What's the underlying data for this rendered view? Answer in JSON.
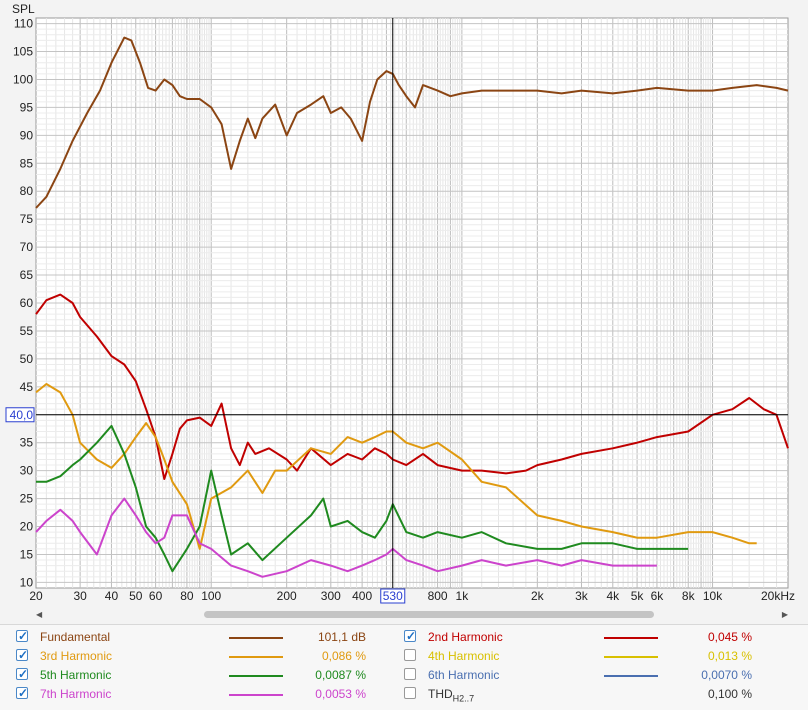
{
  "colors": {
    "fundamental": "#8b4513",
    "h2": "#c00000",
    "h3": "#e09a10",
    "h4": "#d8c000",
    "h5": "#1f8a1f",
    "h6": "#4a6fb0",
    "h7": "#cc44cc",
    "thd": "#333333"
  },
  "chart_data": {
    "type": "line",
    "xscale": "log",
    "ylabel": "SPL",
    "xlim": [
      20,
      20000
    ],
    "ylim": [
      9,
      111
    ],
    "xticks": [
      "20",
      "30",
      "40",
      "50",
      "60",
      "80",
      "100",
      "200",
      "300",
      "400",
      "530",
      "800",
      "1k",
      "2k",
      "3k",
      "4k",
      "5k",
      "6k",
      "8k",
      "10k",
      "20kHz"
    ],
    "xtick_values": [
      20,
      30,
      40,
      50,
      60,
      80,
      100,
      200,
      300,
      400,
      530,
      800,
      1000,
      2000,
      3000,
      4000,
      5000,
      6000,
      8000,
      10000,
      20000
    ],
    "yticks": [
      10,
      15,
      20,
      25,
      30,
      35,
      45,
      50,
      55,
      60,
      65,
      70,
      75,
      80,
      85,
      90,
      95,
      100,
      105,
      110
    ],
    "cursor": {
      "x": 530,
      "y": 40.0,
      "x_label": "530",
      "y_label": "40,0"
    },
    "grid": true,
    "series": [
      {
        "name": "Fundamental",
        "color_key": "fundamental",
        "points": [
          [
            20,
            77
          ],
          [
            22,
            79
          ],
          [
            25,
            84
          ],
          [
            28,
            89
          ],
          [
            32,
            94
          ],
          [
            36,
            98
          ],
          [
            40,
            103
          ],
          [
            45,
            107.5
          ],
          [
            48,
            107
          ],
          [
            52,
            103
          ],
          [
            56,
            98.5
          ],
          [
            60,
            98
          ],
          [
            65,
            100
          ],
          [
            70,
            99
          ],
          [
            75,
            97
          ],
          [
            80,
            96.5
          ],
          [
            90,
            96.5
          ],
          [
            100,
            95
          ],
          [
            110,
            92
          ],
          [
            120,
            84
          ],
          [
            130,
            89
          ],
          [
            140,
            93
          ],
          [
            150,
            89.5
          ],
          [
            160,
            93
          ],
          [
            180,
            95.5
          ],
          [
            200,
            90
          ],
          [
            220,
            94
          ],
          [
            250,
            95.5
          ],
          [
            280,
            97
          ],
          [
            300,
            94
          ],
          [
            330,
            95
          ],
          [
            360,
            93
          ],
          [
            400,
            89
          ],
          [
            430,
            96
          ],
          [
            460,
            100
          ],
          [
            500,
            101.5
          ],
          [
            530,
            101
          ],
          [
            560,
            99
          ],
          [
            600,
            97
          ],
          [
            650,
            95
          ],
          [
            700,
            99
          ],
          [
            800,
            98
          ],
          [
            900,
            97
          ],
          [
            1000,
            97.5
          ],
          [
            1200,
            98
          ],
          [
            1500,
            98
          ],
          [
            2000,
            98
          ],
          [
            2500,
            97.5
          ],
          [
            3000,
            98
          ],
          [
            4000,
            97.5
          ],
          [
            5000,
            98
          ],
          [
            6000,
            98.5
          ],
          [
            8000,
            98
          ],
          [
            10000,
            98
          ],
          [
            12000,
            98.5
          ],
          [
            15000,
            99
          ],
          [
            18000,
            98.5
          ],
          [
            20000,
            98
          ]
        ]
      },
      {
        "name": "2nd Harmonic",
        "color_key": "h2",
        "points": [
          [
            20,
            58
          ],
          [
            22,
            60.5
          ],
          [
            25,
            61.5
          ],
          [
            28,
            60
          ],
          [
            30,
            57.5
          ],
          [
            35,
            54
          ],
          [
            40,
            50.5
          ],
          [
            45,
            49
          ],
          [
            50,
            46
          ],
          [
            55,
            41
          ],
          [
            60,
            36
          ],
          [
            65,
            28.5
          ],
          [
            70,
            33
          ],
          [
            75,
            37.5
          ],
          [
            80,
            39
          ],
          [
            90,
            39.5
          ],
          [
            100,
            38
          ],
          [
            110,
            42
          ],
          [
            120,
            34
          ],
          [
            130,
            31
          ],
          [
            140,
            35
          ],
          [
            150,
            33
          ],
          [
            170,
            34
          ],
          [
            200,
            32
          ],
          [
            220,
            30
          ],
          [
            250,
            34
          ],
          [
            300,
            31
          ],
          [
            350,
            33
          ],
          [
            400,
            32
          ],
          [
            450,
            34
          ],
          [
            500,
            33
          ],
          [
            530,
            32
          ],
          [
            600,
            31
          ],
          [
            700,
            33
          ],
          [
            800,
            31
          ],
          [
            1000,
            30
          ],
          [
            1200,
            30
          ],
          [
            1500,
            29.5
          ],
          [
            1800,
            30
          ],
          [
            2000,
            31
          ],
          [
            2500,
            32
          ],
          [
            3000,
            33
          ],
          [
            4000,
            34
          ],
          [
            5000,
            35
          ],
          [
            6000,
            36
          ],
          [
            8000,
            37
          ],
          [
            10000,
            40
          ],
          [
            12000,
            41
          ],
          [
            14000,
            43
          ],
          [
            16000,
            41
          ],
          [
            18000,
            40
          ],
          [
            20000,
            34
          ]
        ]
      },
      {
        "name": "3rd Harmonic",
        "color_key": "h3",
        "points": [
          [
            20,
            44
          ],
          [
            22,
            45.5
          ],
          [
            25,
            44
          ],
          [
            28,
            40
          ],
          [
            30,
            35
          ],
          [
            35,
            32
          ],
          [
            40,
            30.5
          ],
          [
            45,
            33
          ],
          [
            50,
            36
          ],
          [
            55,
            38.5
          ],
          [
            60,
            36
          ],
          [
            65,
            32
          ],
          [
            70,
            28
          ],
          [
            80,
            24
          ],
          [
            90,
            16
          ],
          [
            100,
            25
          ],
          [
            120,
            27
          ],
          [
            140,
            30
          ],
          [
            160,
            26
          ],
          [
            180,
            30
          ],
          [
            200,
            30
          ],
          [
            250,
            34
          ],
          [
            300,
            33
          ],
          [
            350,
            36
          ],
          [
            400,
            35
          ],
          [
            450,
            36
          ],
          [
            500,
            37
          ],
          [
            530,
            37
          ],
          [
            600,
            35
          ],
          [
            700,
            34
          ],
          [
            800,
            35
          ],
          [
            1000,
            32
          ],
          [
            1200,
            28
          ],
          [
            1500,
            27
          ],
          [
            2000,
            22
          ],
          [
            2500,
            21
          ],
          [
            3000,
            20
          ],
          [
            4000,
            19
          ],
          [
            5000,
            18
          ],
          [
            6000,
            18
          ],
          [
            8000,
            19
          ],
          [
            10000,
            19
          ],
          [
            12000,
            18
          ],
          [
            14000,
            17
          ],
          [
            15000,
            17
          ]
        ]
      },
      {
        "name": "5th Harmonic",
        "color_key": "h5",
        "points": [
          [
            20,
            28
          ],
          [
            22,
            28
          ],
          [
            25,
            29
          ],
          [
            28,
            31
          ],
          [
            30,
            32
          ],
          [
            35,
            35
          ],
          [
            40,
            38
          ],
          [
            45,
            33
          ],
          [
            50,
            27
          ],
          [
            55,
            20
          ],
          [
            60,
            18
          ],
          [
            65,
            15
          ],
          [
            70,
            12
          ],
          [
            80,
            16
          ],
          [
            90,
            20
          ],
          [
            100,
            30
          ],
          [
            110,
            22
          ],
          [
            120,
            15
          ],
          [
            140,
            17
          ],
          [
            160,
            14
          ],
          [
            200,
            18
          ],
          [
            250,
            22
          ],
          [
            280,
            25
          ],
          [
            300,
            20
          ],
          [
            350,
            21
          ],
          [
            400,
            19
          ],
          [
            450,
            18
          ],
          [
            500,
            21
          ],
          [
            530,
            24
          ],
          [
            600,
            19
          ],
          [
            700,
            18
          ],
          [
            800,
            19
          ],
          [
            1000,
            18
          ],
          [
            1200,
            19
          ],
          [
            1500,
            17
          ],
          [
            2000,
            16
          ],
          [
            2500,
            16
          ],
          [
            3000,
            17
          ],
          [
            4000,
            17
          ],
          [
            5000,
            16
          ],
          [
            6000,
            16
          ],
          [
            7000,
            16
          ],
          [
            8000,
            16
          ]
        ]
      },
      {
        "name": "7th Harmonic",
        "color_key": "h7",
        "points": [
          [
            20,
            19
          ],
          [
            22,
            21
          ],
          [
            25,
            23
          ],
          [
            28,
            21
          ],
          [
            30,
            19
          ],
          [
            35,
            15
          ],
          [
            40,
            22
          ],
          [
            45,
            25
          ],
          [
            50,
            22
          ],
          [
            55,
            19
          ],
          [
            60,
            17
          ],
          [
            65,
            18
          ],
          [
            70,
            22
          ],
          [
            80,
            22
          ],
          [
            90,
            17
          ],
          [
            100,
            16
          ],
          [
            120,
            13
          ],
          [
            140,
            12
          ],
          [
            160,
            11
          ],
          [
            200,
            12
          ],
          [
            250,
            14
          ],
          [
            300,
            13
          ],
          [
            350,
            12
          ],
          [
            400,
            13
          ],
          [
            450,
            14
          ],
          [
            500,
            15
          ],
          [
            530,
            16
          ],
          [
            600,
            14
          ],
          [
            700,
            13
          ],
          [
            800,
            12
          ],
          [
            1000,
            13
          ],
          [
            1200,
            14
          ],
          [
            1500,
            13
          ],
          [
            2000,
            14
          ],
          [
            2500,
            13
          ],
          [
            3000,
            14
          ],
          [
            4000,
            13
          ],
          [
            5000,
            13
          ],
          [
            6000,
            13
          ]
        ]
      }
    ]
  },
  "legend": {
    "rows": [
      {
        "key": "fundamental",
        "checked": true,
        "label": "Fundamental",
        "value": "101,1 dB"
      },
      {
        "key": "h2",
        "checked": true,
        "label": "2nd Harmonic",
        "value": "0,045 %"
      },
      {
        "key": "h3",
        "checked": true,
        "label": "3rd Harmonic",
        "value": "0,086 %"
      },
      {
        "key": "h4",
        "checked": false,
        "label": "4th Harmonic",
        "value": "0,013 %"
      },
      {
        "key": "h5",
        "checked": true,
        "label": "5th Harmonic",
        "value": "0,0087 %"
      },
      {
        "key": "h6",
        "checked": false,
        "label": "6th Harmonic",
        "value": "0,0070 %"
      },
      {
        "key": "h7",
        "checked": true,
        "label": "7th Harmonic",
        "value": "0,0053 %"
      },
      {
        "key": "thd",
        "checked": false,
        "label": "THD",
        "label_sub": "H2..7",
        "value": "0,100 %"
      }
    ]
  }
}
